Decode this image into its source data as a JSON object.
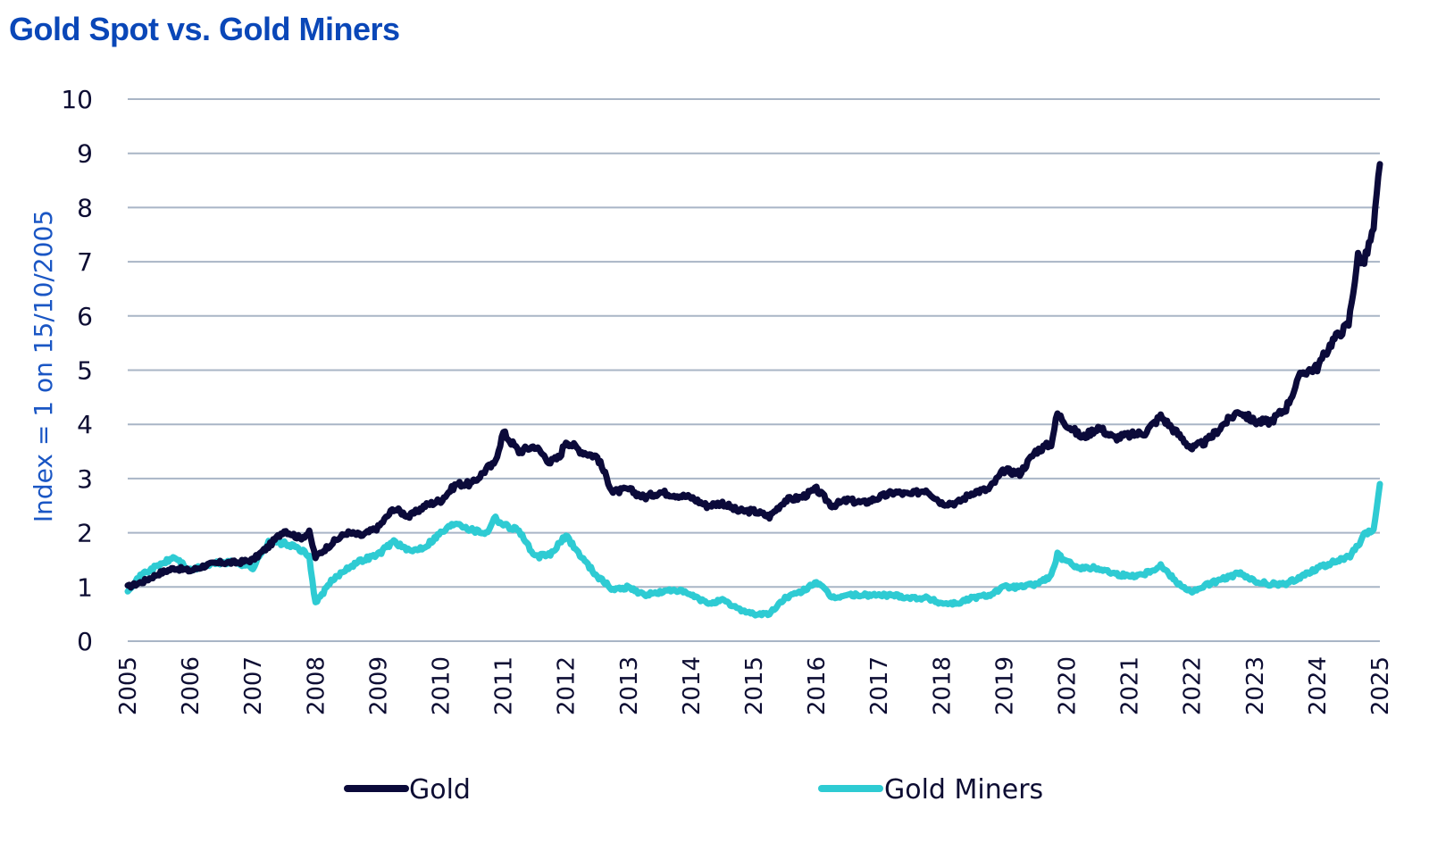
{
  "chart_data": {
    "type": "line",
    "title": "Gold Spot vs. Gold Miners",
    "xlabel": "",
    "ylabel": "Index = 1 on 15/10/2005",
    "xlim": [
      2005,
      2025
    ],
    "ylim": [
      0,
      10
    ],
    "yticks": [
      "0",
      "1",
      "2",
      "3",
      "4",
      "5",
      "6",
      "7",
      "8",
      "9",
      "10"
    ],
    "xticks": [
      "2005",
      "2006",
      "2007",
      "2008",
      "2009",
      "2010",
      "2011",
      "2012",
      "2013",
      "2014",
      "2015",
      "2016",
      "2017",
      "2018",
      "2019",
      "2020",
      "2021",
      "2022",
      "2023",
      "2024",
      "2025"
    ],
    "grid": true,
    "legend_position": "bottom",
    "series": [
      {
        "name": "Gold",
        "color": "#0b0a3a",
        "x": [
          2005.0,
          2005.25,
          2005.5,
          2005.75,
          2006.0,
          2006.25,
          2006.5,
          2006.75,
          2007.0,
          2007.25,
          2007.5,
          2007.75,
          2007.9,
          2008.0,
          2008.25,
          2008.5,
          2008.75,
          2009.0,
          2009.25,
          2009.5,
          2009.75,
          2010.0,
          2010.25,
          2010.5,
          2010.75,
          2010.85,
          2011.0,
          2011.25,
          2011.5,
          2011.75,
          2011.9,
          2012.0,
          2012.25,
          2012.5,
          2012.75,
          2013.0,
          2013.25,
          2013.5,
          2013.75,
          2014.0,
          2014.25,
          2014.5,
          2014.75,
          2015.0,
          2015.25,
          2015.5,
          2015.75,
          2016.0,
          2016.25,
          2016.5,
          2016.75,
          2017.0,
          2017.25,
          2017.5,
          2017.75,
          2018.0,
          2018.25,
          2018.5,
          2018.75,
          2019.0,
          2019.25,
          2019.5,
          2019.75,
          2019.85,
          2020.0,
          2020.25,
          2020.5,
          2020.75,
          2021.0,
          2021.25,
          2021.5,
          2021.75,
          2022.0,
          2022.25,
          2022.5,
          2022.75,
          2023.0,
          2023.25,
          2023.5,
          2023.75,
          2024.0,
          2024.25,
          2024.5,
          2024.65,
          2024.75,
          2024.9,
          2025.0
        ],
        "values": [
          1.0,
          1.1,
          1.25,
          1.35,
          1.3,
          1.4,
          1.45,
          1.45,
          1.5,
          1.75,
          2.05,
          1.9,
          2.0,
          1.55,
          1.8,
          2.0,
          1.95,
          2.1,
          2.45,
          2.3,
          2.5,
          2.6,
          2.9,
          2.9,
          3.2,
          3.25,
          3.85,
          3.5,
          3.6,
          3.3,
          3.4,
          3.7,
          3.5,
          3.4,
          2.75,
          2.8,
          2.65,
          2.75,
          2.7,
          2.65,
          2.5,
          2.55,
          2.4,
          2.4,
          2.3,
          2.6,
          2.65,
          2.8,
          2.5,
          2.6,
          2.55,
          2.65,
          2.75,
          2.7,
          2.8,
          2.55,
          2.55,
          2.75,
          2.8,
          3.15,
          3.1,
          3.5,
          3.65,
          4.2,
          4.0,
          3.75,
          3.95,
          3.75,
          3.8,
          3.85,
          4.15,
          3.85,
          3.55,
          3.7,
          4.0,
          4.25,
          4.05,
          4.05,
          4.3,
          4.95,
          5.05,
          5.55,
          5.85,
          7.1,
          7.0,
          7.6,
          8.8
        ]
      },
      {
        "name": "Gold Miners",
        "color": "#2ecbd3",
        "x": [
          2005.0,
          2005.25,
          2005.5,
          2005.75,
          2006.0,
          2006.25,
          2006.5,
          2006.75,
          2007.0,
          2007.25,
          2007.5,
          2007.75,
          2007.9,
          2008.0,
          2008.25,
          2008.5,
          2008.75,
          2009.0,
          2009.25,
          2009.5,
          2009.75,
          2010.0,
          2010.25,
          2010.5,
          2010.75,
          2010.85,
          2011.0,
          2011.25,
          2011.5,
          2011.75,
          2011.9,
          2012.0,
          2012.25,
          2012.5,
          2012.75,
          2013.0,
          2013.25,
          2013.5,
          2013.75,
          2014.0,
          2014.25,
          2014.5,
          2014.75,
          2015.0,
          2015.25,
          2015.5,
          2015.75,
          2016.0,
          2016.25,
          2016.5,
          2016.75,
          2017.0,
          2017.25,
          2017.5,
          2017.75,
          2018.0,
          2018.25,
          2018.5,
          2018.75,
          2019.0,
          2019.25,
          2019.5,
          2019.75,
          2019.85,
          2020.0,
          2020.25,
          2020.5,
          2020.75,
          2021.0,
          2021.25,
          2021.5,
          2021.75,
          2022.0,
          2022.25,
          2022.5,
          2022.75,
          2023.0,
          2023.25,
          2023.5,
          2023.75,
          2024.0,
          2024.25,
          2024.5,
          2024.65,
          2024.75,
          2024.9,
          2025.0
        ],
        "values": [
          0.95,
          1.25,
          1.4,
          1.55,
          1.3,
          1.4,
          1.45,
          1.45,
          1.35,
          1.85,
          1.8,
          1.7,
          1.55,
          0.7,
          1.1,
          1.35,
          1.5,
          1.6,
          1.85,
          1.65,
          1.75,
          2.0,
          2.2,
          2.05,
          2.0,
          2.3,
          2.15,
          2.05,
          1.55,
          1.6,
          1.8,
          1.95,
          1.55,
          1.2,
          0.95,
          1.0,
          0.85,
          0.9,
          0.95,
          0.85,
          0.7,
          0.75,
          0.6,
          0.5,
          0.5,
          0.8,
          0.9,
          1.1,
          0.8,
          0.85,
          0.85,
          0.85,
          0.85,
          0.8,
          0.8,
          0.7,
          0.7,
          0.8,
          0.85,
          1.0,
          1.0,
          1.05,
          1.2,
          1.6,
          1.45,
          1.35,
          1.35,
          1.25,
          1.2,
          1.25,
          1.4,
          1.1,
          0.9,
          1.05,
          1.15,
          1.25,
          1.1,
          1.05,
          1.05,
          1.2,
          1.35,
          1.45,
          1.55,
          1.75,
          1.95,
          2.05,
          2.9
        ]
      }
    ]
  }
}
